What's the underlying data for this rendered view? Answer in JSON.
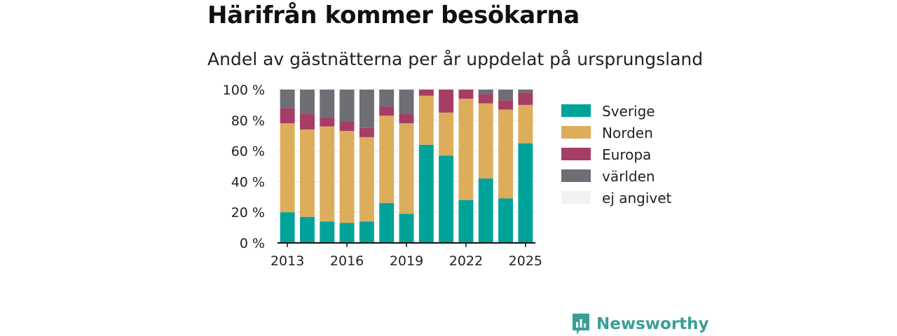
{
  "title": "Härifrån kommer besökarna",
  "subtitle": "Andel av gästnätterna per år uppdelat på ursprungsland",
  "brand": "Newsworthy",
  "chart_data": {
    "type": "bar",
    "stacked": true,
    "categories": [
      "2013",
      "2014",
      "2015",
      "2016",
      "2017",
      "2018",
      "2019",
      "2020",
      "2021",
      "2022",
      "2023",
      "2024",
      "2025"
    ],
    "x_ticks": [
      "2013",
      "2016",
      "2019",
      "2022",
      "2025"
    ],
    "ylim": [
      0,
      100
    ],
    "y_ticks": [
      0,
      20,
      40,
      60,
      80,
      100
    ],
    "y_tick_suffix": " %",
    "grid": true,
    "legend_position": "right",
    "series": [
      {
        "name": "Sverige",
        "color": "#00a39a",
        "values": [
          20,
          17,
          14,
          13,
          14,
          26,
          19,
          64,
          57,
          28,
          42,
          29,
          65
        ]
      },
      {
        "name": "Norden",
        "color": "#dcae5c",
        "values": [
          58,
          57,
          62,
          60,
          55,
          57,
          59,
          32,
          28,
          66,
          49,
          58,
          25
        ]
      },
      {
        "name": "Europa",
        "color": "#a63d65",
        "values": [
          10,
          10,
          6,
          6,
          6,
          6,
          6,
          4,
          15,
          6,
          6,
          6,
          8
        ]
      },
      {
        "name": "världen",
        "color": "#6e6e75",
        "values": [
          12,
          16,
          18,
          21,
          25,
          11,
          16,
          0,
          0,
          0,
          3,
          7,
          2
        ]
      },
      {
        "name": "ej angivet",
        "color": "#f2f2f2",
        "values": [
          0,
          0,
          0,
          0,
          0,
          0,
          0,
          0,
          0,
          0,
          0,
          0,
          0
        ]
      }
    ]
  }
}
